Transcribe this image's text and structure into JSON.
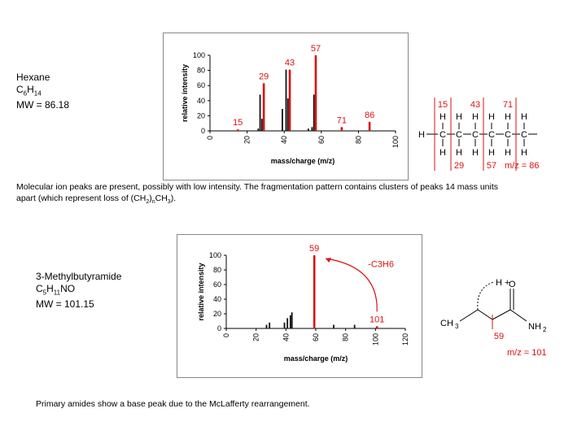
{
  "hexane": {
    "name": "Hexane",
    "formula": {
      "c": "C",
      "c_sub": "6",
      "h": "H",
      "h_sub": "14"
    },
    "mw": "MW = 86.18"
  },
  "hexane_note": {
    "line1": "Molecular ion peaks are present, possibly with low intensity.  The fragmentation pattern contains clusters of peaks 14 mass units",
    "line2_pre": "apart (which represent loss of (CH",
    "sub_2": "2",
    "sub_n": "n",
    "line2_mid": "CH",
    "sub_3": "3",
    "line2_post": ")."
  },
  "amide": {
    "name": "3-Methylbutyramide",
    "formula": {
      "c": "C",
      "c_sub": "5",
      "h": "H",
      "h_sub": "11",
      "rest": "NO"
    },
    "mw": "MW = 101.15"
  },
  "amide_note": "Primary amides show a base peak due to the McLafferty rearrangement.",
  "chart_data": [
    {
      "type": "bar",
      "title": "",
      "xlabel": "mass/charge (m/z)",
      "ylabel": "relative intensity",
      "xlim": [
        0,
        100
      ],
      "ylim": [
        0,
        100
      ],
      "xticks": [
        "0",
        "20",
        "40",
        "60",
        "80",
        "100"
      ],
      "yticks": [
        "0",
        "20",
        "40",
        "60",
        "80",
        "100"
      ],
      "peaks": [
        {
          "mz": 15,
          "intensity": 2,
          "color": "#dd1111"
        },
        {
          "mz": 26,
          "intensity": 3,
          "color": "#111111"
        },
        {
          "mz": 27,
          "intensity": 48,
          "color": "#111111"
        },
        {
          "mz": 28,
          "intensity": 16,
          "color": "#111111"
        },
        {
          "mz": 29,
          "intensity": 63,
          "color": "#dd1111"
        },
        {
          "mz": 39,
          "intensity": 29,
          "color": "#111111"
        },
        {
          "mz": 41,
          "intensity": 81,
          "color": "#111111"
        },
        {
          "mz": 42,
          "intensity": 43,
          "color": "#111111"
        },
        {
          "mz": 43,
          "intensity": 81,
          "color": "#dd1111"
        },
        {
          "mz": 53,
          "intensity": 3,
          "color": "#111111"
        },
        {
          "mz": 55,
          "intensity": 5,
          "color": "#111111"
        },
        {
          "mz": 56,
          "intensity": 48,
          "color": "#111111"
        },
        {
          "mz": 57,
          "intensity": 100,
          "color": "#dd1111"
        },
        {
          "mz": 71,
          "intensity": 5,
          "color": "#dd1111"
        },
        {
          "mz": 86,
          "intensity": 12,
          "color": "#dd1111"
        }
      ],
      "labels": [
        {
          "text": "15",
          "mz": 15,
          "intensity": 2
        },
        {
          "text": "29",
          "mz": 29,
          "intensity": 63
        },
        {
          "text": "43",
          "mz": 43,
          "intensity": 81
        },
        {
          "text": "57",
          "mz": 57,
          "intensity": 100
        },
        {
          "text": "71",
          "mz": 71,
          "intensity": 5
        },
        {
          "text": "86",
          "mz": 86,
          "intensity": 12
        }
      ]
    },
    {
      "type": "bar",
      "title": "",
      "xlabel": "mass/charge (m/z)",
      "ylabel": "relative intensity",
      "xlim": [
        0,
        120
      ],
      "ylim": [
        0,
        100
      ],
      "xticks": [
        "0",
        "20",
        "40",
        "60",
        "80",
        "100",
        "120"
      ],
      "yticks": [
        "0",
        "20",
        "40",
        "60",
        "80",
        "100"
      ],
      "peaks": [
        {
          "mz": 27,
          "intensity": 5,
          "color": "#111111"
        },
        {
          "mz": 29,
          "intensity": 8,
          "color": "#111111"
        },
        {
          "mz": 39,
          "intensity": 8,
          "color": "#111111"
        },
        {
          "mz": 41,
          "intensity": 14,
          "color": "#111111"
        },
        {
          "mz": 43,
          "intensity": 18,
          "color": "#111111"
        },
        {
          "mz": 44,
          "intensity": 22,
          "color": "#111111"
        },
        {
          "mz": 59,
          "intensity": 100,
          "color": "#dd1111"
        },
        {
          "mz": 72,
          "intensity": 5,
          "color": "#111111"
        },
        {
          "mz": 86,
          "intensity": 5,
          "color": "#111111"
        },
        {
          "mz": 101,
          "intensity": 3,
          "color": "#dd1111"
        }
      ],
      "labels": [
        {
          "text": "59",
          "mz": 59,
          "intensity": 100
        },
        {
          "text": "101",
          "mz": 101,
          "intensity": 3
        }
      ],
      "annotations": [
        {
          "text": "-C3H6"
        }
      ]
    }
  ],
  "hexane_structure": {
    "atom_c": "C",
    "atom_h": "H",
    "bond": "—",
    "top_labels": [
      "15",
      "43",
      "71"
    ],
    "bottom_labels": [
      "29",
      "57",
      "m/z = 86"
    ]
  },
  "amide_structure": {
    "h_plus": "H +",
    "o": "O",
    "ch3": "CH",
    "ch3_sub": "3",
    "nh2": "NH",
    "nh2_sub": "2",
    "frag": "59",
    "mz": "m/z = 101"
  }
}
